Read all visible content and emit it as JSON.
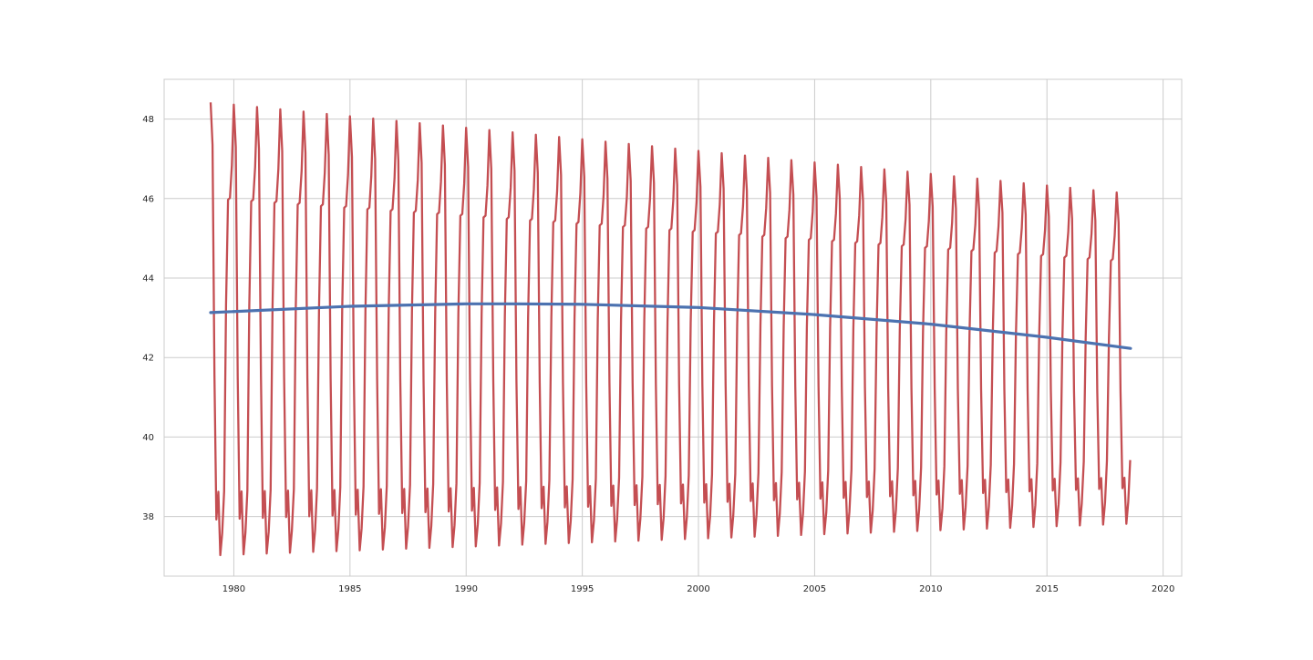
{
  "chart_data": {
    "type": "line",
    "title": "",
    "xlabel": "",
    "ylabel": "",
    "xlim": [
      1977.0,
      2020.8
    ],
    "ylim": [
      36.5,
      49.0
    ],
    "x_ticks": [
      1980,
      1985,
      1990,
      1995,
      2000,
      2005,
      2010,
      2015,
      2020
    ],
    "y_ticks": [
      38,
      40,
      42,
      44,
      46,
      48
    ],
    "grid": true,
    "legend": "none",
    "series": [
      {
        "color": "#c44e52",
        "x_start": 1979.0,
        "x_end": 2018.58,
        "samples_per_year": 12,
        "seasonal_cycle": {
          "peak_first": 48.42,
          "peak_last": 46.12,
          "secondary_first": 46.05,
          "secondary_last": 44.45,
          "trough_first": 37.02,
          "trough_last": 37.82,
          "small_peak_first": 38.62,
          "small_peak_last": 38.98,
          "month_pattern": [
            "peak",
            "high",
            "mid",
            "trough",
            "small_peak",
            "trough",
            "low",
            "low",
            "mid",
            "secondary",
            "secondary",
            "peak_rise"
          ]
        }
      },
      {
        "color": "#4c72b0",
        "x": [
          1979.0,
          1985.0,
          1990.0,
          1992.0,
          1995.0,
          2000.0,
          2005.0,
          2010.0,
          2015.0,
          2018.6
        ],
        "y": [
          43.13,
          43.29,
          43.35,
          43.35,
          43.34,
          43.26,
          43.08,
          42.84,
          42.51,
          42.23
        ]
      }
    ]
  }
}
